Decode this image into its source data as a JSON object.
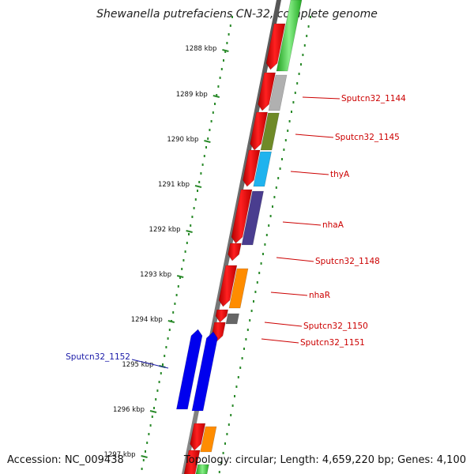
{
  "title": "Shewanella putrefaciens CN-32, complete genome",
  "footer": {
    "accession": "Accession: NC_009438",
    "stats": "Topology: circular; Length: 4,659,220 bp; Genes: 4,100"
  },
  "colors": {
    "backbone": "#6e6e6e",
    "ruler": "#2a8a2a",
    "forward_label": "#1a1aa8",
    "reverse_label": "#cc0000"
  },
  "ruler": {
    "unit": "kbp",
    "ticks": [
      "1288 kbp",
      "1289 kbp",
      "1290 kbp",
      "1291 kbp",
      "1292 kbp",
      "1293 kbp",
      "1294 kbp",
      "1295 kbp",
      "1296 kbp",
      "1297 kbp"
    ]
  },
  "gene_labels": [
    "Sputcn32_1144",
    "Sputcn32_1145",
    "thyA",
    "nhaA",
    "Sputcn32_1148",
    "nhaR",
    "Sputcn32_1150",
    "Sputcn32_1151",
    "Sputcn32_1152"
  ],
  "features": {
    "cds_reverse": [
      "cds",
      "cds",
      "cds",
      "cds",
      "cds",
      "cds",
      "cds",
      "cds",
      "cds",
      "cds",
      "cds"
    ],
    "genes_reverse": [
      {
        "label": "Sputcn32_1144",
        "color": "#b0b0b0"
      },
      {
        "label": "Sputcn32_1145",
        "color": "#6f8a28"
      },
      {
        "label": "thyA",
        "color": "#1fb3ee"
      },
      {
        "label": "nhaA",
        "color": "#4a3d8f"
      },
      {
        "label": "nhaR",
        "color": "#ff8c00"
      },
      {
        "label": "Sputcn32_1150",
        "color": "#666666"
      }
    ],
    "genes_forward": [
      {
        "label": "Sputcn32_1152",
        "color": "#0000ee"
      }
    ]
  }
}
